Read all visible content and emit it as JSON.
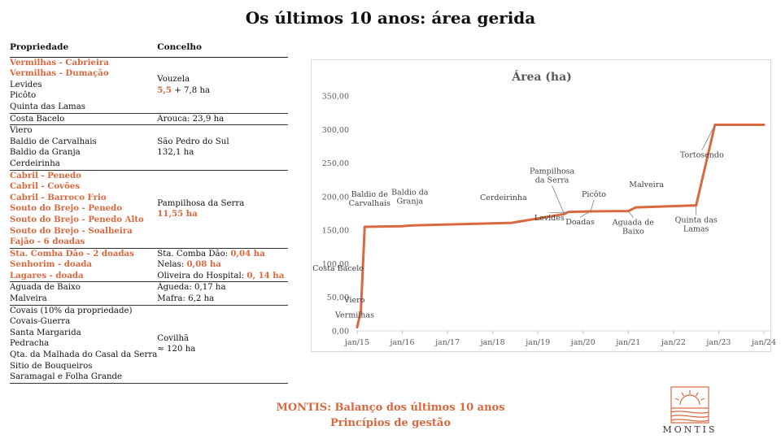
{
  "title": "Os últimos 10 anos: área gerida",
  "table": {
    "headers": [
      "Propriedade",
      "Concelho"
    ],
    "groups": [
      {
        "props": [
          {
            "text": "Vermilhas - Cabrieira",
            "hl": true
          },
          {
            "text": "Vermilhas - Dumação",
            "hl": true
          },
          {
            "text": "Levides",
            "hl": false
          },
          {
            "text": "Picôto",
            "hl": false
          },
          {
            "text": "Quinta das Lamas",
            "hl": false
          }
        ],
        "concelho": [
          [
            {
              "text": "Vouzela",
              "hl": false
            }
          ],
          [
            {
              "text": "5,5",
              "hl": true
            },
            {
              "text": " + 7,8 ha",
              "hl": false
            }
          ]
        ]
      },
      {
        "props": [
          {
            "text": "Costa Bacelo",
            "hl": false
          }
        ],
        "concelho": [
          [
            {
              "text": "Arouca: 23,9 ha",
              "hl": false
            }
          ]
        ]
      },
      {
        "props": [
          {
            "text": "Viero",
            "hl": false
          },
          {
            "text": "Baldio de Carvalhais",
            "hl": false
          },
          {
            "text": "Baldio da Granja",
            "hl": false
          },
          {
            "text": "Cerdeirinha",
            "hl": false
          }
        ],
        "concelho": [
          [
            {
              "text": "São Pedro do Sul",
              "hl": false
            }
          ],
          [
            {
              "text": "132,1 ha",
              "hl": false
            }
          ]
        ]
      },
      {
        "props": [
          {
            "text": "Cabril - Penedo",
            "hl": true
          },
          {
            "text": "Cabril - Covões",
            "hl": true
          },
          {
            "text": "Cabril - Barroco Frio",
            "hl": true
          },
          {
            "text": "Souto do Brejo - Penedo",
            "hl": true
          },
          {
            "text": "Souto do Brejo - Penedo Alto",
            "hl": true
          },
          {
            "text": "Souto do Brejo - Soalheira",
            "hl": true
          },
          {
            "text": "Fajão - 6 doadas",
            "hl": true
          }
        ],
        "concelho": [
          [
            {
              "text": "Pampilhosa da Serra",
              "hl": false
            }
          ],
          [
            {
              "text": "11,55 ha",
              "hl": true
            }
          ]
        ]
      },
      {
        "props": [
          {
            "text": "Sta. Comba Dão - 2 doadas",
            "hl": true
          },
          {
            "text": "Senhorim - doada",
            "hl": true
          },
          {
            "text": "Lagares - doada",
            "hl": true
          }
        ],
        "concelho": [
          [
            {
              "text": "Sta. Comba Dão: ",
              "hl": false
            },
            {
              "text": "0,04 ha",
              "hl": true
            }
          ],
          [
            {
              "text": "Nelas: ",
              "hl": false
            },
            {
              "text": "0,08 ha",
              "hl": true
            }
          ],
          [
            {
              "text": "Oliveira do Hospital: ",
              "hl": false
            },
            {
              "text": "0, 14 ha",
              "hl": true
            }
          ]
        ]
      },
      {
        "props": [
          {
            "text": "Aguada de Baixo",
            "hl": false
          },
          {
            "text": "Malveira",
            "hl": false
          }
        ],
        "concelho": [
          [
            {
              "text": "Águeda: 0,17 ha",
              "hl": false
            }
          ],
          [
            {
              "text": "Mafra: 6,2 ha",
              "hl": false
            }
          ]
        ]
      },
      {
        "props": [
          {
            "text": "Covais (10% da propriedade)",
            "hl": false
          },
          {
            "text": "Covais-Guerra",
            "hl": false
          },
          {
            "text": "Santa Margarida",
            "hl": false
          },
          {
            "text": "Pedracha",
            "hl": false
          },
          {
            "text": "Qta. da Malhada do Casal da Serra",
            "hl": false
          },
          {
            "text": "Sitio de Bouqueiros",
            "hl": false
          },
          {
            "text": "Saramagal e Folha Grande",
            "hl": false
          }
        ],
        "concelho": [
          [
            {
              "text": "Covilhã",
              "hl": false
            }
          ],
          [
            {
              "text": "≈ 120 ha",
              "hl": false
            }
          ]
        ]
      }
    ]
  },
  "chart_data": {
    "type": "line",
    "title": "Área (ha)",
    "xlabel": "",
    "ylabel": "",
    "x_ticks": [
      "jan/15",
      "jan/16",
      "jan/17",
      "jan/18",
      "jan/19",
      "jan/20",
      "jan/21",
      "jan/22",
      "jan/23",
      "jan/24"
    ],
    "xlim": [
      "2015-01",
      "2024-01"
    ],
    "y_ticks": [
      "0,00",
      "50,00",
      "100,00",
      "150,00",
      "200,00",
      "250,00",
      "300,00",
      "350,00"
    ],
    "ylim": [
      0,
      350
    ],
    "color": "#d9683f",
    "points": [
      {
        "x": "2015-01",
        "y": 5.5
      },
      {
        "x": "2015-02",
        "y": 30
      },
      {
        "x": "2015-03",
        "y": 155
      },
      {
        "x": "2016-01",
        "y": 156
      },
      {
        "x": "2016-03",
        "y": 157
      },
      {
        "x": "2018-06",
        "y": 161
      },
      {
        "x": "2019-08",
        "y": 174
      },
      {
        "x": "2019-09",
        "y": 177
      },
      {
        "x": "2020-03",
        "y": 178
      },
      {
        "x": "2021-01",
        "y": 178.5
      },
      {
        "x": "2021-03",
        "y": 184
      },
      {
        "x": "2022-07",
        "y": 187
      },
      {
        "x": "2022-12",
        "y": 307
      },
      {
        "x": "2024-01",
        "y": 307
      }
    ],
    "annotations": [
      {
        "text": "Vermilhas",
        "x": "2015-01",
        "y": 5.5
      },
      {
        "text": "Viero",
        "x": "2015-02",
        "y": 30
      },
      {
        "text": "Costa Bacelo",
        "x": "2015-02",
        "y": 30
      },
      {
        "text": "Baldio de Carvalhais",
        "x": "2015-03",
        "y": 155
      },
      {
        "text": "Baldio da Granja",
        "x": "2016-03",
        "y": 157
      },
      {
        "text": "Cerdeirinha",
        "x": "2018-06",
        "y": 161
      },
      {
        "text": "Pampilhosa da Serra",
        "x": "2019-08",
        "y": 174
      },
      {
        "text": "Levides",
        "x": "2019-09",
        "y": 177
      },
      {
        "text": "Doadas",
        "x": "2020-03",
        "y": 178
      },
      {
        "text": "Picôto",
        "x": "2020-03",
        "y": 178
      },
      {
        "text": "Aguada de Baixo",
        "x": "2021-01",
        "y": 178.5
      },
      {
        "text": "Malveira",
        "x": "2021-03",
        "y": 184
      },
      {
        "text": "Quinta das Lamas",
        "x": "2022-07",
        "y": 187
      },
      {
        "text": "Tortosendo",
        "x": "2022-12",
        "y": 307
      }
    ]
  },
  "footer": {
    "line1": "MONTIS: Balanço dos últimos 10 anos",
    "line2": "Princípios de gestão"
  },
  "logo": {
    "text": "MONTIS",
    "color": "#d9683f"
  }
}
